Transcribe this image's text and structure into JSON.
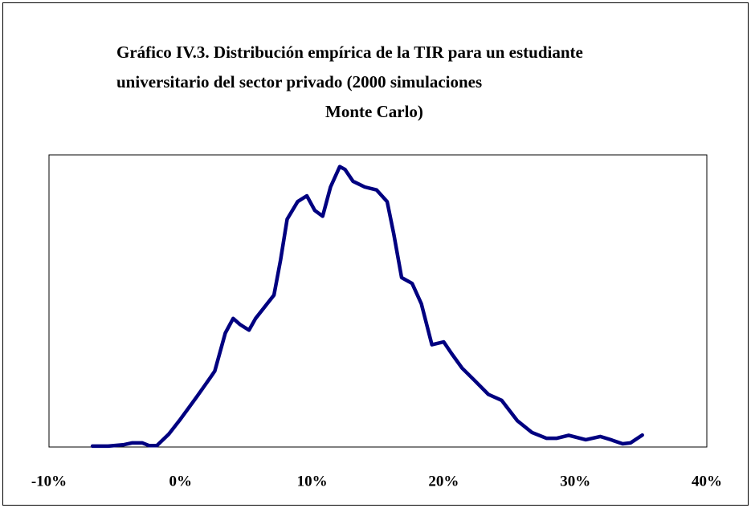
{
  "chart_data": {
    "type": "line",
    "title": [
      "Gráfico IV.3. Distribución empírica de la TIR para un estudiante",
      "universitario del sector privado (2000 simulaciones",
      "Monte Carlo)"
    ],
    "x": [
      -6.7,
      -5.5,
      -4.3,
      -3.7,
      -2.9,
      -2.4,
      -1.8,
      -0.9,
      0,
      1.2,
      2.3,
      2.6,
      3.4,
      4.0,
      4.5,
      5.2,
      5.7,
      6.4,
      7.1,
      7.6,
      8.1,
      8.9,
      9.6,
      10.2,
      10.8,
      11.4,
      12.1,
      12.5,
      13.1,
      14.0,
      14.9,
      15.7,
      16.2,
      16.8,
      17.6,
      18.3,
      19.1,
      20.0,
      20.6,
      21.4,
      22.3,
      23.4,
      24.4,
      25.6,
      26.7,
      27.8,
      28.6,
      29.5,
      30.8,
      31.9,
      32.7,
      33.6,
      34.2,
      35.1
    ],
    "series": [
      {
        "color": "#000080",
        "values": [
          0.3,
          0.3,
          0.8,
          1.4,
          1.4,
          0.5,
          0.5,
          4.4,
          9.6,
          17,
          24,
          26,
          39,
          44,
          42,
          40,
          44,
          48,
          52,
          64,
          78,
          84,
          86,
          81,
          79,
          89,
          96,
          95,
          91,
          89,
          88,
          84,
          73,
          58,
          56,
          49,
          35,
          36,
          32,
          27,
          23,
          18,
          16,
          9,
          5,
          3,
          3,
          4,
          2.5,
          3.6,
          2.5,
          1.1,
          1.4,
          4.1
        ]
      }
    ],
    "xlim": [
      -10,
      40
    ],
    "xticks": [
      {
        "value": -10,
        "label": "-10%"
      },
      {
        "value": 0,
        "label": "0%"
      },
      {
        "value": 10,
        "label": "10%"
      },
      {
        "value": 20,
        "label": "20%"
      },
      {
        "value": 30,
        "label": "30%"
      },
      {
        "value": 40,
        "label": "40%"
      }
    ],
    "ylim": [
      0,
      100
    ],
    "grid": false
  }
}
